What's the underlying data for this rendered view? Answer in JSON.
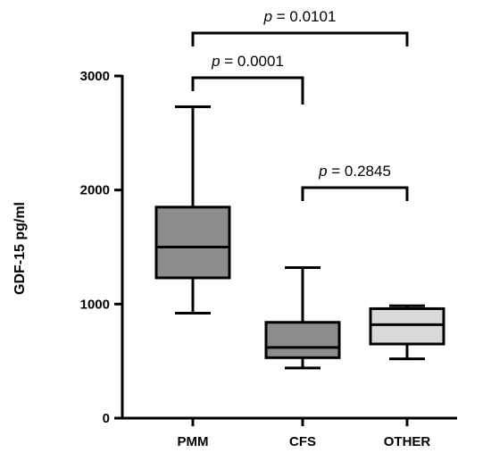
{
  "chart_data": {
    "type": "box",
    "ylabel": "GDF-15 pg/ml",
    "xlabel": "",
    "ylim": [
      0,
      3000
    ],
    "yticks": [
      0,
      1000,
      2000,
      3000
    ],
    "grid": false,
    "categories": [
      "PMM",
      "CFS",
      "OTHER"
    ],
    "boxes": [
      {
        "category": "PMM",
        "min": 920,
        "q1": 1230,
        "median": 1500,
        "q3": 1850,
        "max": 2730,
        "fill": "#8c8c8c"
      },
      {
        "category": "CFS",
        "min": 440,
        "q1": 530,
        "median": 620,
        "q3": 840,
        "max": 1320,
        "fill": "#8c8c8c"
      },
      {
        "category": "OTHER",
        "min": 520,
        "q1": 650,
        "median": 820,
        "q3": 960,
        "max": 985,
        "fill": "#d9d9d9"
      }
    ],
    "comparisons": [
      {
        "from": "PMM",
        "to": "OTHER",
        "p_symbol": "p",
        "p_text": " = 0.0101"
      },
      {
        "from": "PMM",
        "to": "CFS",
        "p_symbol": "p",
        "p_text": " = 0.0001"
      },
      {
        "from": "CFS",
        "to": "OTHER",
        "p_symbol": "p",
        "p_text": " = 0.2845"
      }
    ]
  }
}
